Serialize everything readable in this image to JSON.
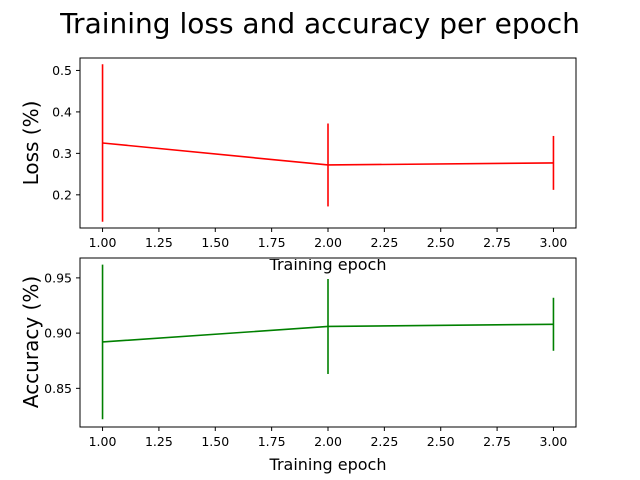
{
  "figure": {
    "title": "Training loss and accuracy per epoch"
  },
  "chart_data": [
    {
      "type": "line",
      "title": "",
      "xlabel": "Training epoch",
      "ylabel": "Loss (%)",
      "x": [
        1,
        2,
        3
      ],
      "series": [
        {
          "values": [
            0.325,
            0.272,
            0.277
          ],
          "error": [
            0.19,
            0.1,
            0.065
          ],
          "color": "#ff0000"
        }
      ],
      "xlim": [
        0.9,
        3.1
      ],
      "ylim": [
        0.12,
        0.53
      ],
      "xticks": [
        "1.00",
        "1.25",
        "1.50",
        "1.75",
        "2.00",
        "2.25",
        "2.50",
        "2.75",
        "3.00"
      ],
      "xtick_values": [
        1.0,
        1.25,
        1.5,
        1.75,
        2.0,
        2.25,
        2.5,
        2.75,
        3.0
      ],
      "yticks": [
        "0.2",
        "0.3",
        "0.4",
        "0.5"
      ],
      "ytick_values": [
        0.2,
        0.3,
        0.4,
        0.5
      ],
      "grid": false,
      "legend": "none"
    },
    {
      "type": "line",
      "title": "",
      "xlabel": "Training epoch",
      "ylabel": "Accuracy (%)",
      "x": [
        1,
        2,
        3
      ],
      "series": [
        {
          "values": [
            0.892,
            0.906,
            0.908
          ],
          "error": [
            0.07,
            0.043,
            0.024
          ],
          "color": "#008000"
        }
      ],
      "xlim": [
        0.9,
        3.1
      ],
      "ylim": [
        0.815,
        0.968
      ],
      "xticks": [
        "1.00",
        "1.25",
        "1.50",
        "1.75",
        "2.00",
        "2.25",
        "2.50",
        "2.75",
        "3.00"
      ],
      "xtick_values": [
        1.0,
        1.25,
        1.5,
        1.75,
        2.0,
        2.25,
        2.5,
        2.75,
        3.0
      ],
      "yticks": [
        "0.85",
        "0.90",
        "0.95"
      ],
      "ytick_values": [
        0.85,
        0.9,
        0.95
      ],
      "grid": false,
      "legend": "none"
    }
  ]
}
